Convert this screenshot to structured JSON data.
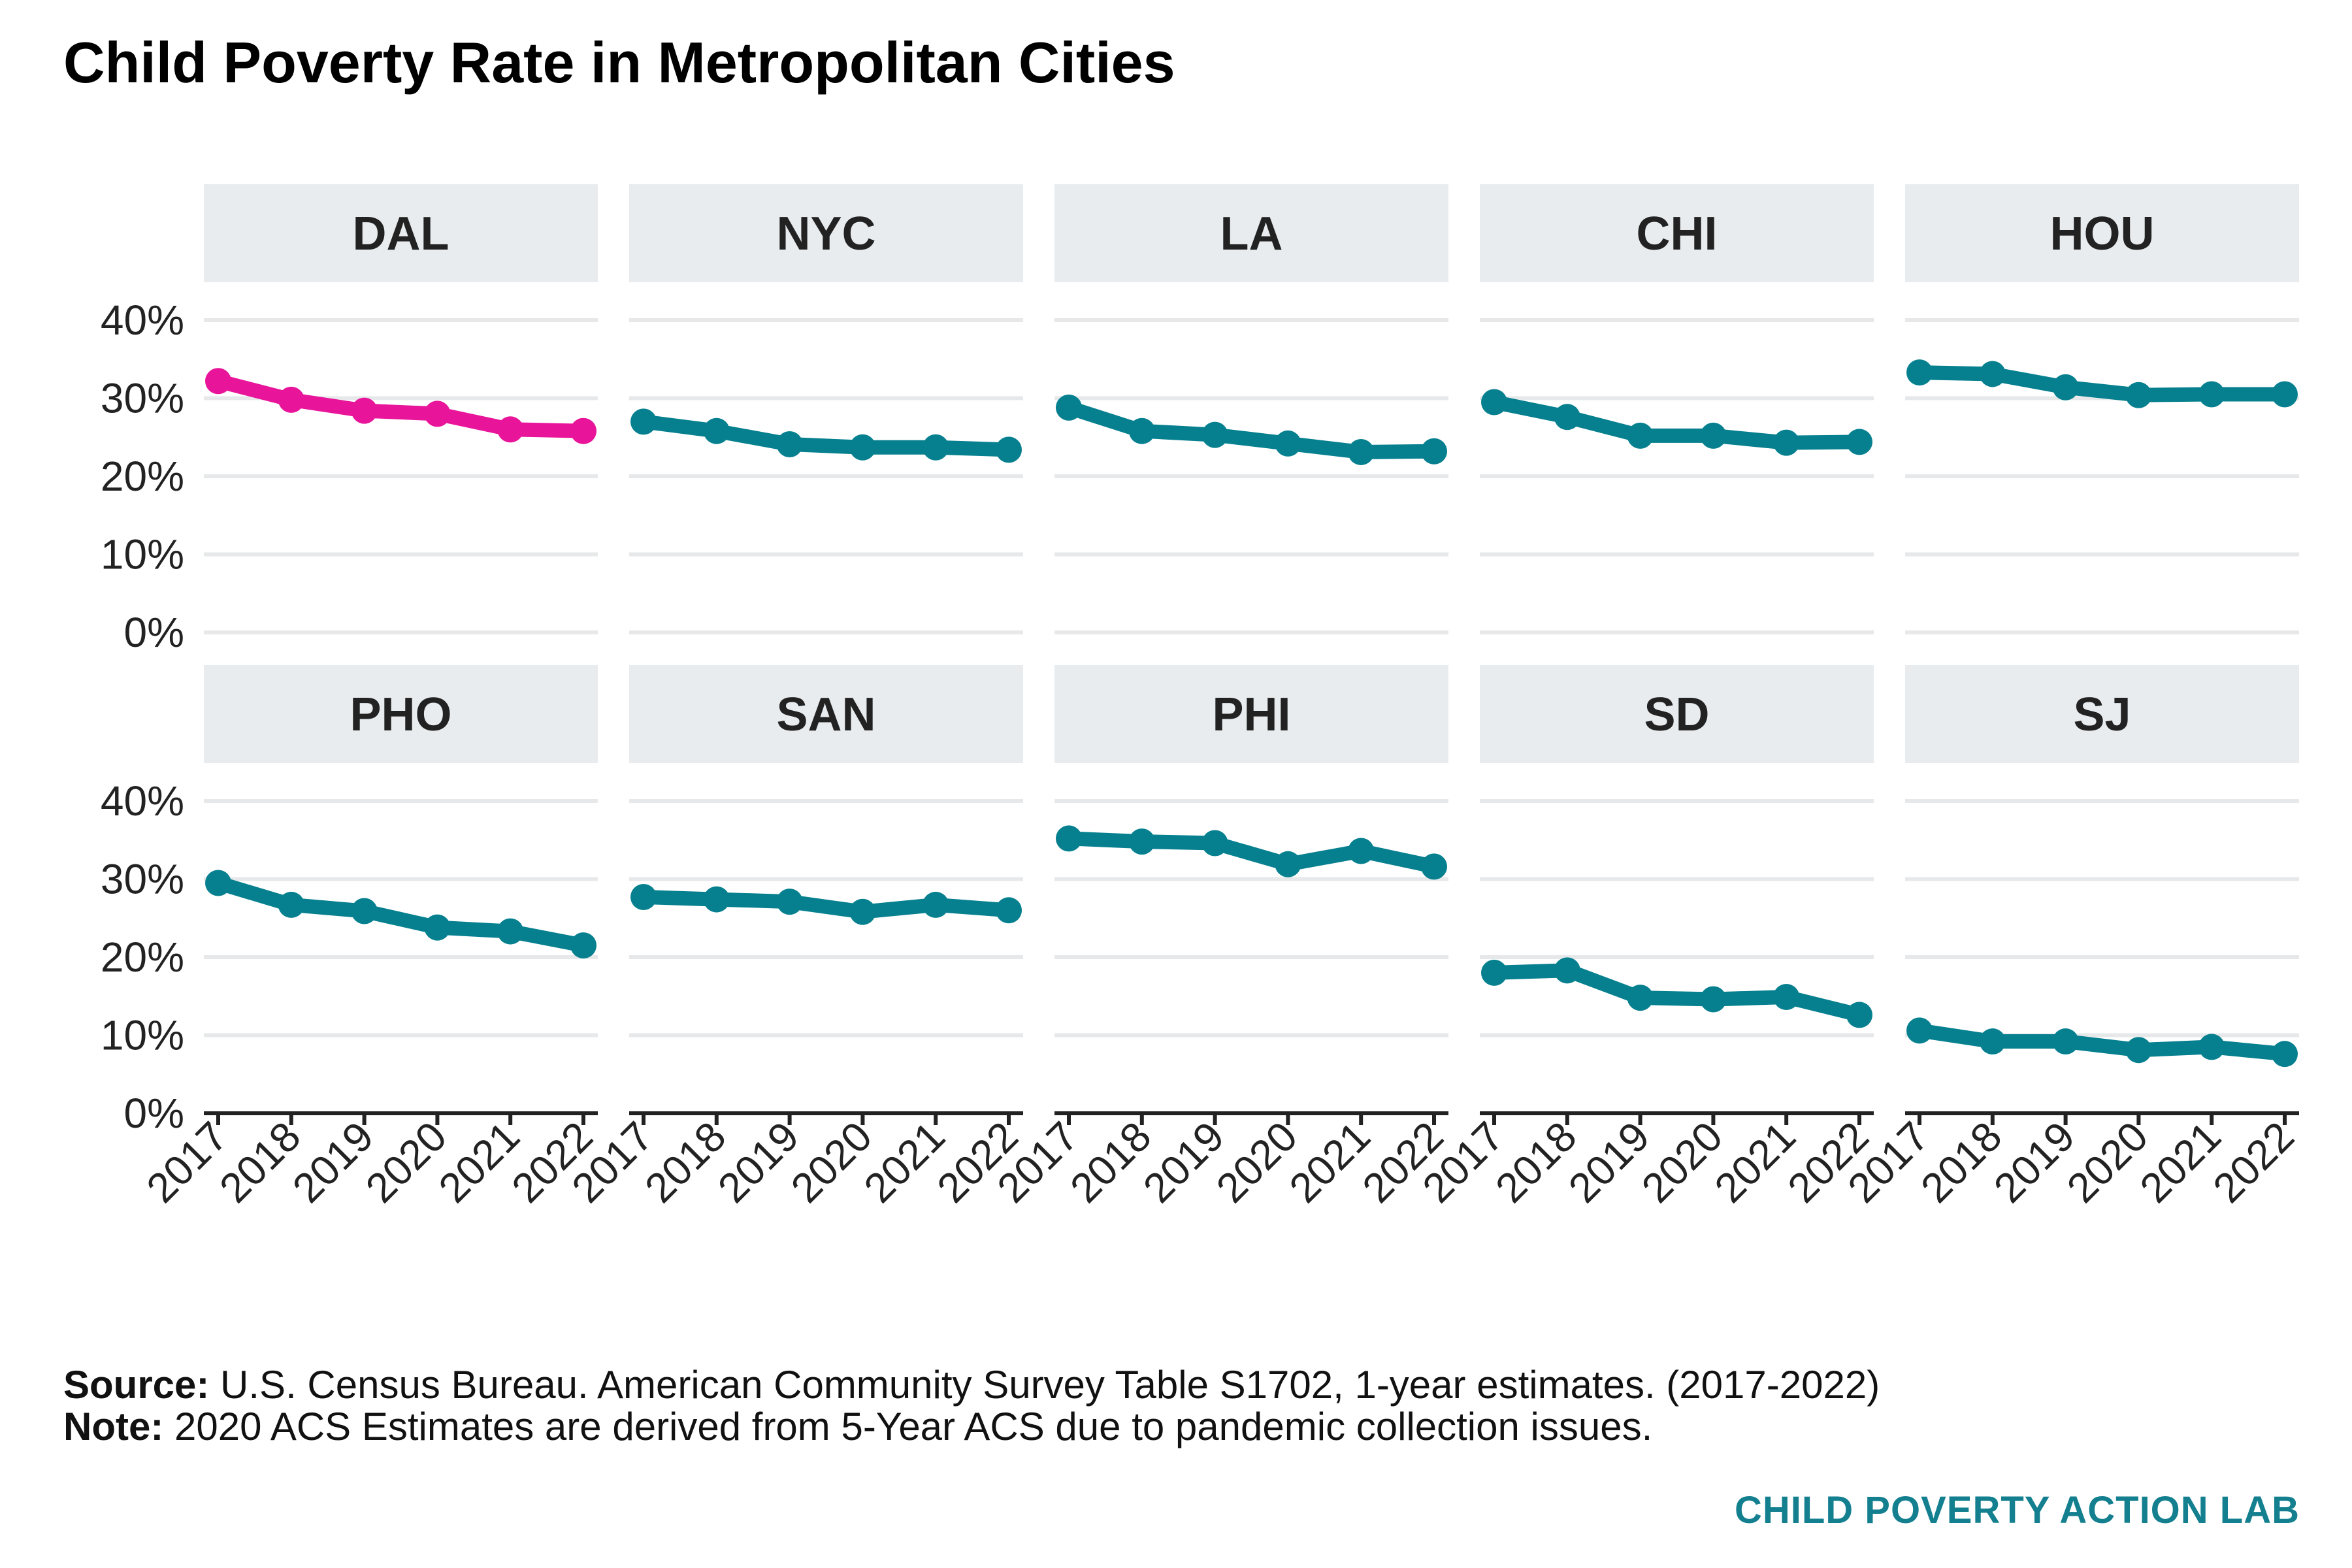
{
  "title": "Child Poverty Rate in Metropolitan Cities",
  "colors": {
    "highlight": "#e8149a",
    "series": "#06808f",
    "strip_bg": "#e8ecee",
    "grid": "#e6e8ea",
    "brand": "#137f8f"
  },
  "chart_data": {
    "type": "line",
    "facet_rows": 2,
    "facet_cols": 5,
    "x": [
      "2017",
      "2018",
      "2019",
      "2020",
      "2021",
      "2022"
    ],
    "y_ticks": [
      "0%",
      "10%",
      "20%",
      "30%",
      "40%"
    ],
    "ylim": [
      0,
      40
    ],
    "grid": true,
    "legend": "none",
    "panels": [
      {
        "name": "DAL",
        "highlight": true,
        "values": [
          32.2,
          29.8,
          28.4,
          28.0,
          26.0,
          25.8
        ]
      },
      {
        "name": "NYC",
        "highlight": false,
        "values": [
          27.0,
          25.8,
          24.1,
          23.7,
          23.7,
          23.4
        ]
      },
      {
        "name": "LA",
        "highlight": false,
        "values": [
          28.8,
          25.8,
          25.3,
          24.2,
          23.1,
          23.2
        ]
      },
      {
        "name": "CHI",
        "highlight": false,
        "values": [
          29.5,
          27.6,
          25.2,
          25.2,
          24.3,
          24.4
        ]
      },
      {
        "name": "HOU",
        "highlight": false,
        "values": [
          33.3,
          33.1,
          31.4,
          30.4,
          30.5,
          30.5
        ]
      },
      {
        "name": "PHO",
        "highlight": false,
        "values": [
          29.5,
          26.7,
          25.9,
          23.8,
          23.3,
          21.5
        ]
      },
      {
        "name": "SAN",
        "highlight": false,
        "values": [
          27.7,
          27.4,
          27.1,
          25.8,
          26.7,
          26.0
        ]
      },
      {
        "name": "PHI",
        "highlight": false,
        "values": [
          35.2,
          34.8,
          34.6,
          31.9,
          33.6,
          31.6
        ]
      },
      {
        "name": "SD",
        "highlight": false,
        "values": [
          18.0,
          18.3,
          14.8,
          14.6,
          14.9,
          12.6
        ]
      },
      {
        "name": "SJ",
        "highlight": false,
        "values": [
          10.6,
          9.2,
          9.2,
          8.1,
          8.5,
          7.6
        ]
      }
    ]
  },
  "footer": {
    "source_label": "Source:",
    "source_text": " U.S. Census Bureau. American Community Survey Table S1702, 1-year estimates. (2017-2022)",
    "note_label": "Note:",
    "note_text": " 2020 ACS Estimates are derived from 5-Year ACS due to pandemic collection issues."
  },
  "brand": "CHILD POVERTY ACTION LAB"
}
